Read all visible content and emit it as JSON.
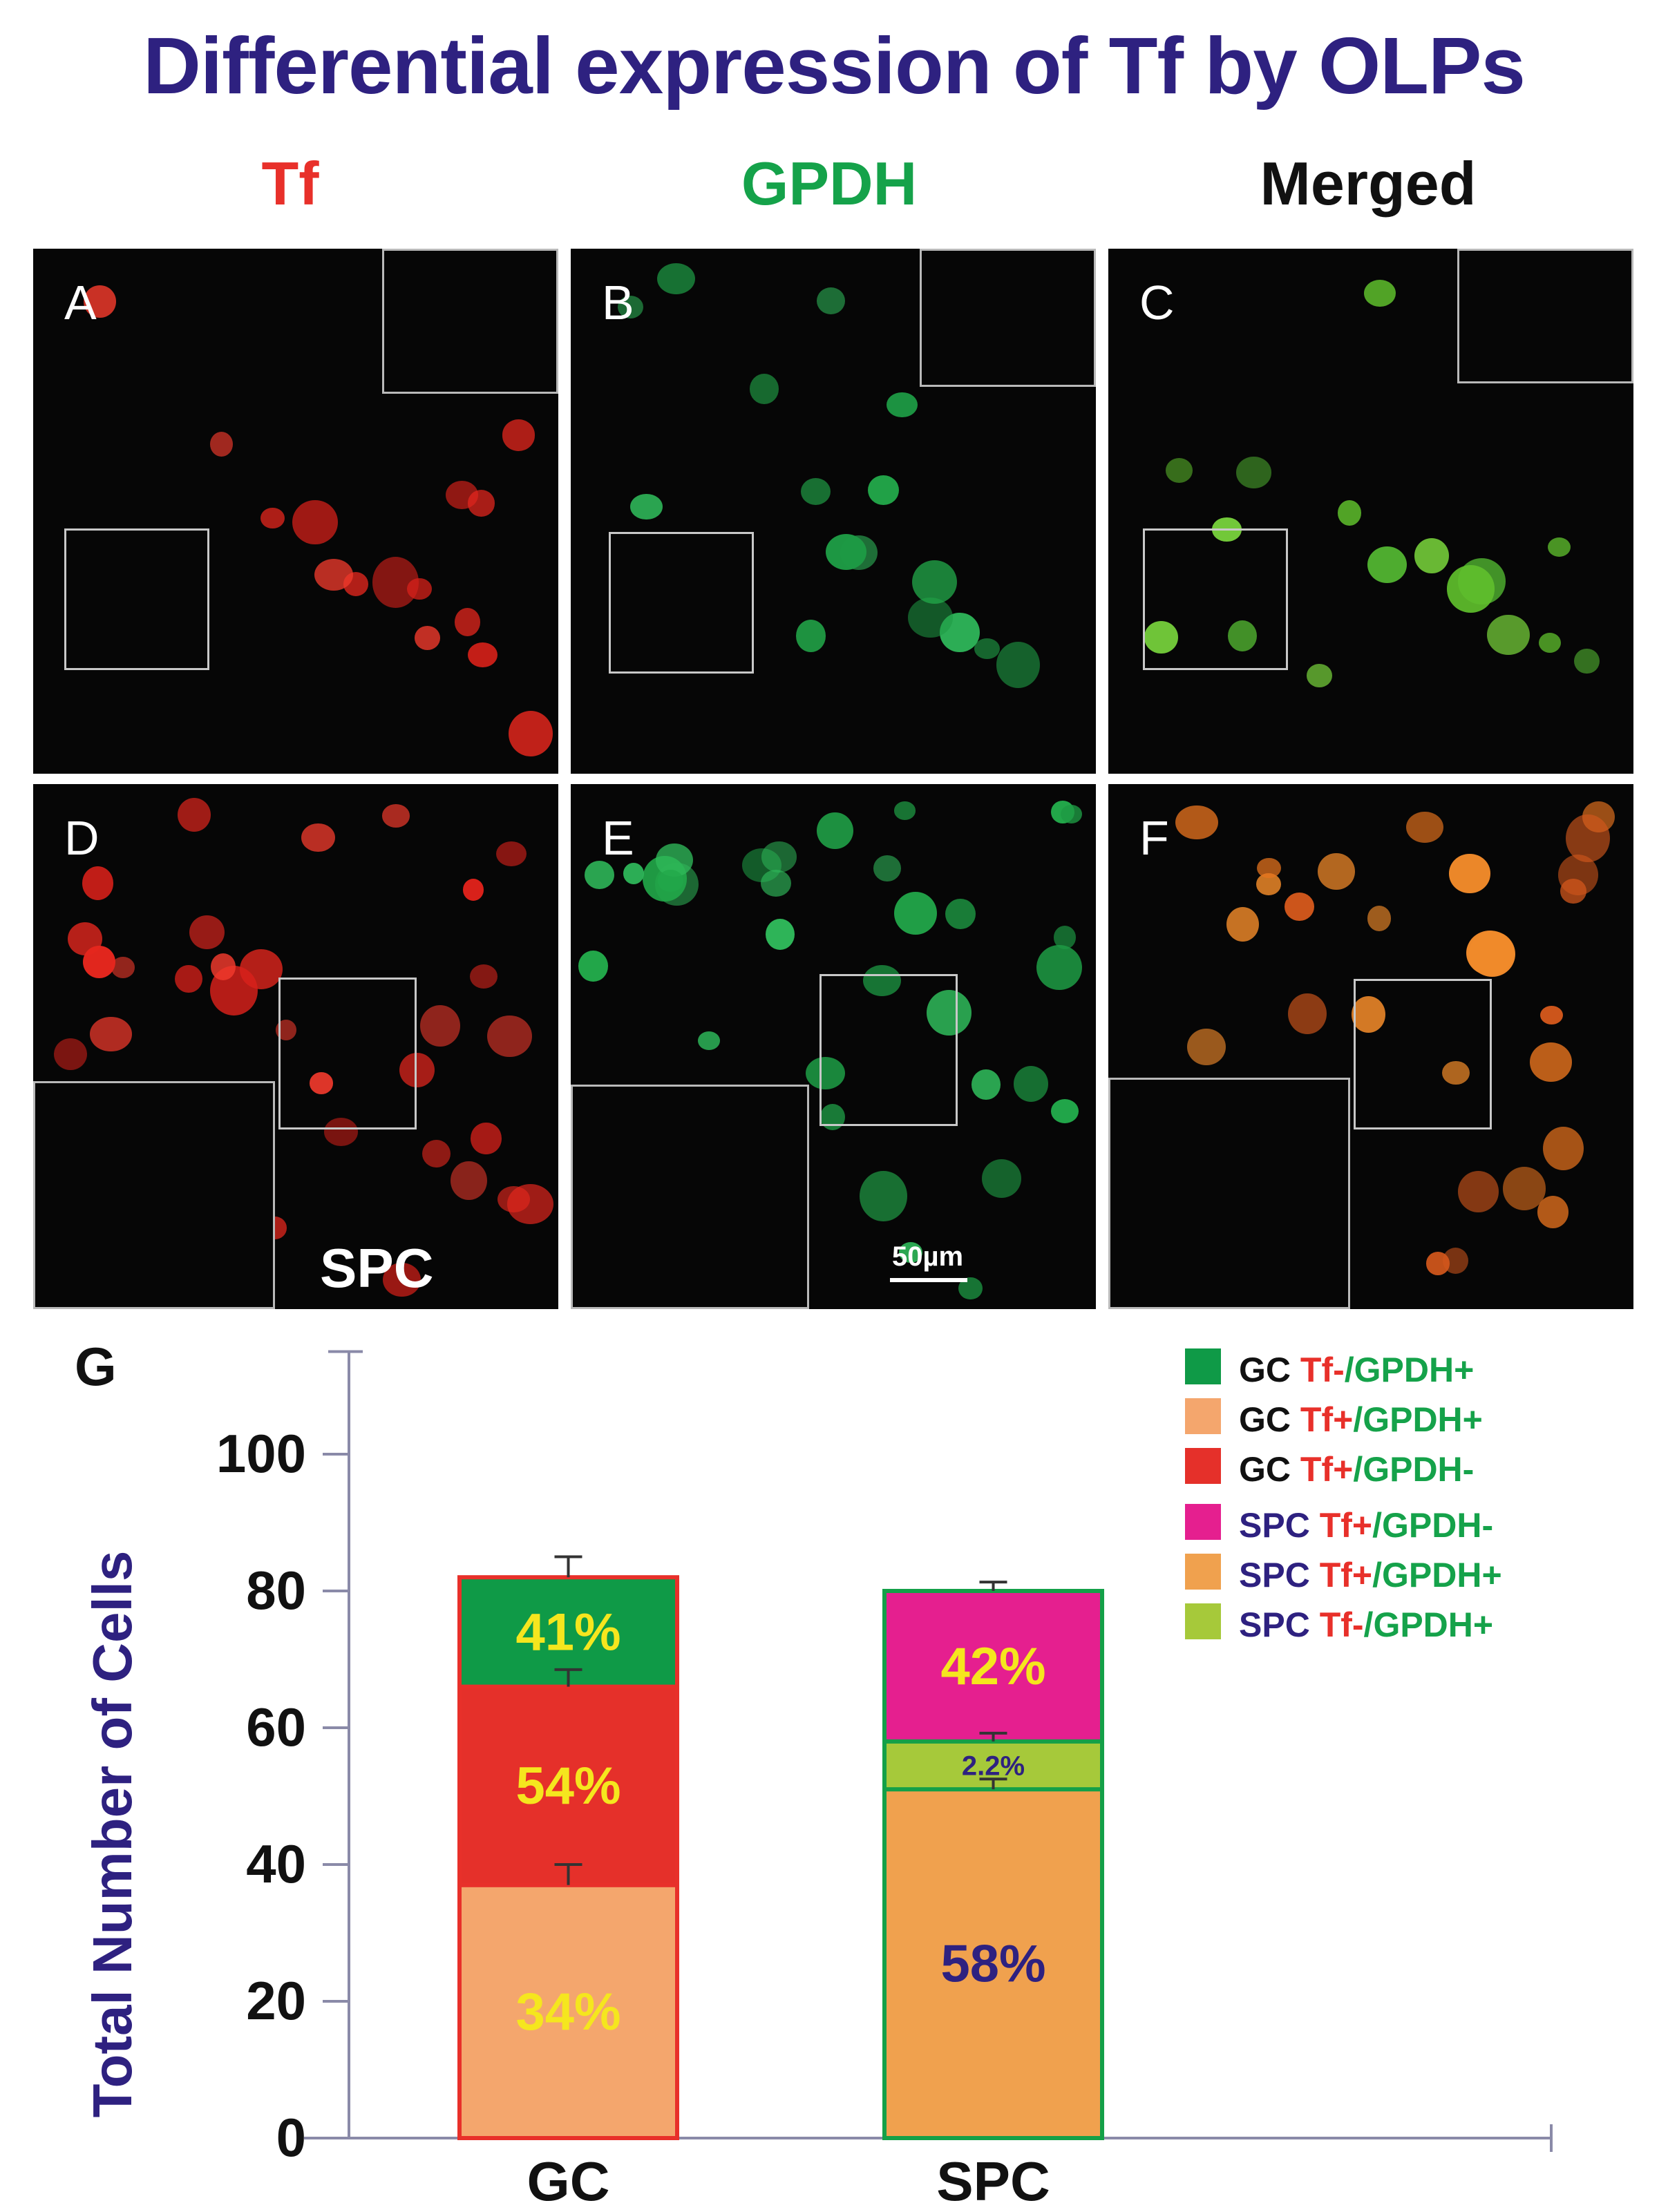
{
  "figure_title": "Differential expression of Tf by OLPs",
  "columns": [
    {
      "label": "Tf",
      "color": "#e8302a"
    },
    {
      "label": "GPDH",
      "color": "#15a24a"
    },
    {
      "label": "Merged",
      "color": "#111111"
    }
  ],
  "panels": [
    {
      "label": "A",
      "stain": "red"
    },
    {
      "label": "B",
      "stain": "green"
    },
    {
      "label": "C",
      "stain": "lime"
    },
    {
      "label": "D",
      "stain": "red"
    },
    {
      "label": "E",
      "stain": "green"
    },
    {
      "label": "F",
      "stain": "orange"
    }
  ],
  "row2_text": {
    "spc": "SPC",
    "scale_bar": "50µm"
  },
  "panel_g_label": "G",
  "chart_data": {
    "type": "bar",
    "stacked": true,
    "title": "",
    "xlabel": "",
    "ylabel": "Total Number of Cells",
    "ylim": [
      0,
      115
    ],
    "yticks": [
      0,
      20,
      40,
      60,
      80,
      100
    ],
    "categories": [
      "GC",
      "SPC"
    ],
    "bars": [
      {
        "category": "GC",
        "outline": "#e8302a",
        "segments": [
          {
            "series": "GC Tf+/GPDH+",
            "from": 0,
            "to": 37,
            "color": "#f4a66d",
            "label": "34%",
            "label_color": "#f5e61e"
          },
          {
            "series": "GC Tf+/GPDH-",
            "from": 37,
            "to": 66,
            "color": "#e5302a",
            "label": "54%",
            "label_color": "#f5e61e"
          },
          {
            "series": "GC Tf-/GPDH+",
            "from": 66,
            "to": 82,
            "color": "#0f9a47",
            "label": "41%",
            "label_color": "#f5e61e"
          }
        ],
        "error_bars": [
          {
            "value": 37,
            "err": 3
          },
          {
            "value": 66,
            "err": 2.5
          },
          {
            "value": 82,
            "err": 3
          }
        ]
      },
      {
        "category": "SPC",
        "outline": "#14a048",
        "segments": [
          {
            "series": "SPC Tf+/GPDH+",
            "from": 0,
            "to": 51,
            "color": "#f0a14e",
            "label": "58%",
            "label_color": "#2e2180"
          },
          {
            "series": "SPC Tf-/GPDH+",
            "from": 51,
            "to": 58,
            "color": "#a6c93a",
            "label": "2.2%",
            "label_color": "#2e2180"
          },
          {
            "series": "SPC Tf+/GPDH-",
            "from": 58,
            "to": 80,
            "color": "#e51f8f",
            "label": "42%",
            "label_color": "#f5e61e"
          }
        ],
        "error_bars": [
          {
            "value": 51,
            "err": 1.5
          },
          {
            "value": 58,
            "err": 1.2
          },
          {
            "value": 80,
            "err": 1.3
          }
        ]
      }
    ],
    "legend": {
      "position": "top-right",
      "entries": [
        {
          "color": "#0f9a47",
          "group": "GC",
          "part1": "Tf-",
          "part2": "/GPDH+"
        },
        {
          "color": "#f4a66d",
          "group": "GC",
          "part1": "Tf+",
          "part2": "/GPDH+"
        },
        {
          "color": "#e5302a",
          "group": "GC",
          "part1": "Tf+",
          "part2": "/GPDH-"
        },
        {
          "color": "#e51f8f",
          "group": "SPC",
          "part1": "Tf+",
          "part2": "/GPDH-"
        },
        {
          "color": "#f0a14e",
          "group": "SPC",
          "part1": "Tf+",
          "part2": "/GPDH+"
        },
        {
          "color": "#a6c93a",
          "group": "SPC",
          "part1": "Tf-",
          "part2": "/GPDH+"
        }
      ],
      "group_colors": {
        "GC": "#111111",
        "SPC": "#2e2180"
      },
      "part1_color": "#e8302a",
      "part2_color": "#15a24a"
    }
  }
}
